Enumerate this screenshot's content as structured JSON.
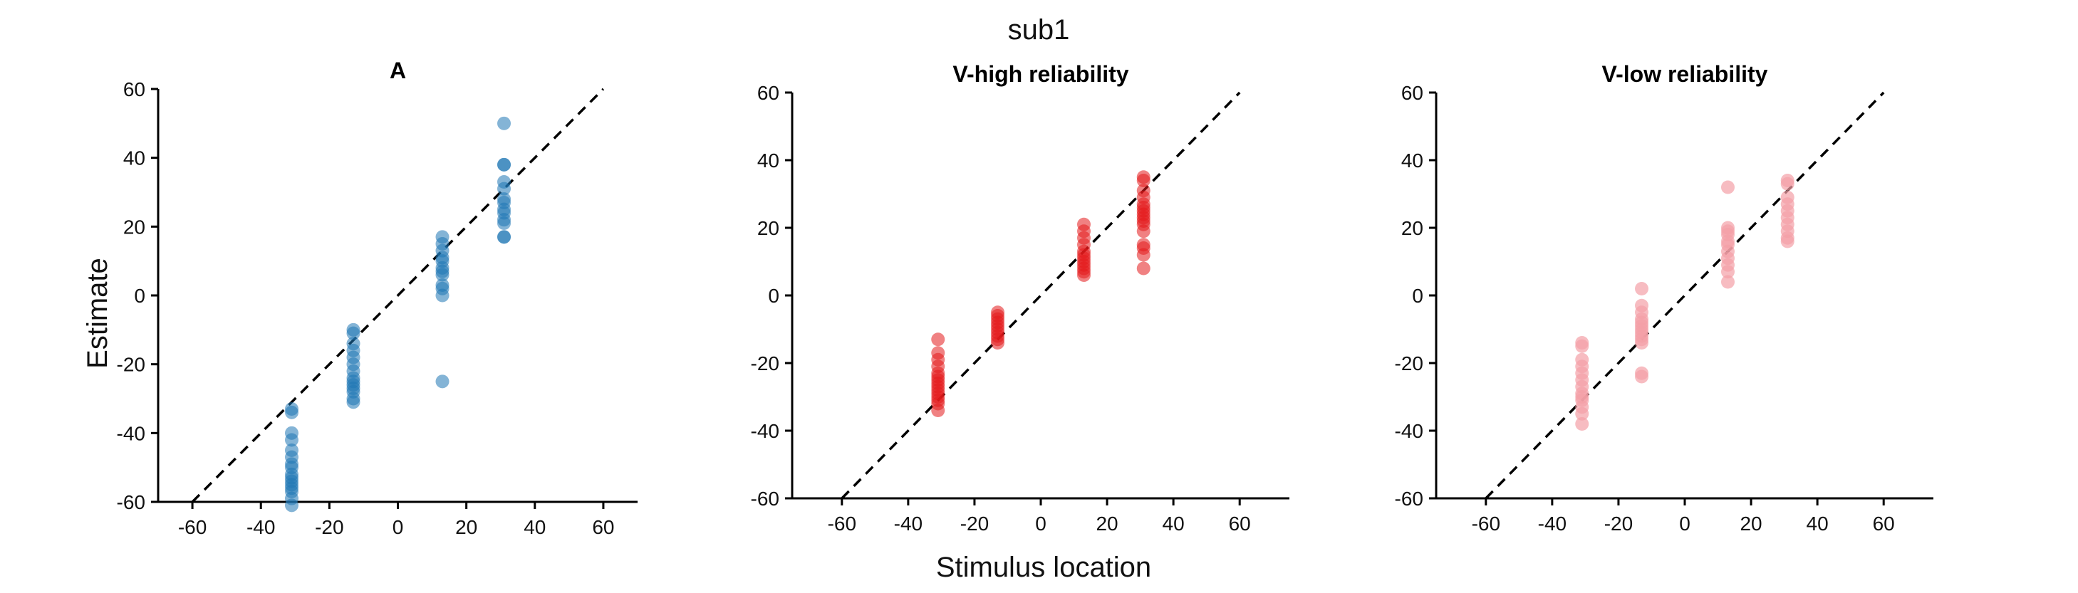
{
  "figure": {
    "suptitle": "sub1",
    "xlabel": "Stimulus location",
    "ylabel": "Estimate"
  },
  "chart_data": [
    {
      "type": "scatter",
      "title": "A",
      "xlim": [
        -70,
        70
      ],
      "ylim": [
        -60,
        60
      ],
      "xticks": [
        "-60",
        "-40",
        "-20",
        "0",
        "20",
        "40",
        "60"
      ],
      "yticks": [
        "-60",
        "-40",
        "-20",
        "0",
        "20",
        "40",
        "60"
      ],
      "identity_line": true,
      "color": "#1f77b4",
      "alpha": 0.55,
      "points": [
        {
          "x": -31,
          "y": [
            -33,
            -34,
            -40,
            -42,
            -45,
            -47,
            -49,
            -50,
            -52,
            -53,
            -54,
            -55,
            -56,
            -57,
            -59,
            -61
          ]
        },
        {
          "x": -13,
          "y": [
            -10,
            -11,
            -14,
            -16,
            -18,
            -20,
            -22,
            -24,
            -25,
            -26,
            -27,
            -28,
            -30,
            -31
          ]
        },
        {
          "x": 13,
          "y": [
            17,
            15,
            13,
            11,
            10,
            8,
            7,
            6,
            3,
            2,
            0,
            -25
          ]
        },
        {
          "x": 31,
          "y": [
            50,
            38,
            38,
            33,
            31,
            28,
            27,
            25,
            24,
            22,
            21,
            17,
            17
          ]
        }
      ]
    },
    {
      "type": "scatter",
      "title": "V-high reliability",
      "xlim": [
        -75,
        75
      ],
      "ylim": [
        -60,
        60
      ],
      "xticks": [
        "-60",
        "-40",
        "-20",
        "0",
        "20",
        "40",
        "60"
      ],
      "yticks": [
        "-60",
        "-40",
        "-20",
        "0",
        "20",
        "40",
        "60"
      ],
      "identity_line": true,
      "color": "#e31a1c",
      "alpha": 0.55,
      "points": [
        {
          "x": -31,
          "y": [
            -13,
            -17,
            -19,
            -21,
            -23,
            -24,
            -25,
            -26,
            -27,
            -28,
            -29,
            -30,
            -31,
            -32,
            -34
          ]
        },
        {
          "x": -13,
          "y": [
            -5,
            -6,
            -7,
            -8,
            -9,
            -10,
            -11,
            -12,
            -13,
            -14
          ]
        },
        {
          "x": 13,
          "y": [
            21,
            19,
            17,
            15,
            13,
            12,
            11,
            10,
            9,
            8,
            7,
            6
          ]
        },
        {
          "x": 31,
          "y": [
            35,
            34,
            31,
            29,
            27,
            26,
            25,
            24,
            23,
            22,
            21,
            19,
            15,
            14,
            12,
            8
          ]
        }
      ]
    },
    {
      "type": "scatter",
      "title": "V-low reliability",
      "xlim": [
        -75,
        75
      ],
      "ylim": [
        -60,
        60
      ],
      "xticks": [
        "-60",
        "-40",
        "-20",
        "0",
        "20",
        "40",
        "60"
      ],
      "yticks": [
        "-60",
        "-40",
        "-20",
        "0",
        "20",
        "40",
        "60"
      ],
      "identity_line": true,
      "color": "#f4a0a6",
      "alpha": 0.7,
      "points": [
        {
          "x": -31,
          "y": [
            -14,
            -15,
            -19,
            -21,
            -23,
            -25,
            -27,
            -29,
            -30,
            -31,
            -33,
            -35,
            -38
          ]
        },
        {
          "x": -13,
          "y": [
            2,
            -3,
            -5,
            -7,
            -8,
            -9,
            -10,
            -11,
            -12,
            -13,
            -14,
            -23,
            -24
          ]
        },
        {
          "x": 13,
          "y": [
            32,
            20,
            19,
            18,
            16,
            15,
            13,
            11,
            9,
            7,
            4
          ]
        },
        {
          "x": 31,
          "y": [
            34,
            33,
            29,
            27,
            25,
            23,
            21,
            19,
            17,
            16
          ]
        }
      ]
    }
  ]
}
